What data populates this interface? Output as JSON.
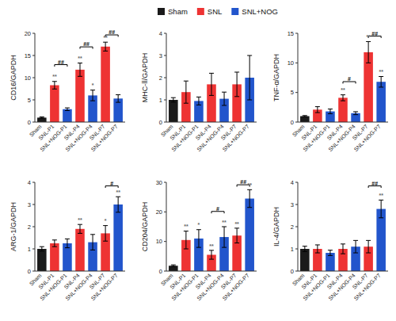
{
  "chart_data": [
    {
      "type": "bar",
      "ylabel": "CD16/GAPDH",
      "categories": [
        "Sham",
        "SNL-P1",
        "SNL+NOG-P1",
        "SNL-P4",
        "SNL+NOG-P4",
        "SNL-P7",
        "SNL+NOG-P7"
      ],
      "values": [
        1.0,
        8.3,
        2.9,
        11.8,
        6.0,
        17.0,
        5.3
      ],
      "errors": [
        0.15,
        0.85,
        0.3,
        1.5,
        1.2,
        1.0,
        0.85
      ],
      "colors": [
        "#1a1a1a",
        "#EE3333",
        "#2255CC",
        "#EE3333",
        "#2255CC",
        "#EE3333",
        "#2255CC"
      ],
      "ylim": [
        0,
        20
      ],
      "yticks": [
        0,
        5,
        10,
        15,
        20
      ],
      "grid": false,
      "annotations": [
        {
          "index": 1,
          "label": "**",
          "color": "dimgray"
        },
        {
          "index": 3,
          "label": "**",
          "color": "dimgray"
        },
        {
          "index": 4,
          "label": "*",
          "color": "dimgray"
        },
        {
          "index": 5,
          "label": "**",
          "color": "dimgray"
        }
      ],
      "brackets": [
        {
          "from": 1,
          "to": 2,
          "y": 12.5,
          "label": "##"
        },
        {
          "from": 3,
          "to": 4,
          "y": 16.5,
          "label": "##"
        },
        {
          "from": 5,
          "to": 6,
          "y": 19.2,
          "label": "##"
        }
      ],
      "legend": "top",
      "legend_entries": [
        {
          "name": "Sham",
          "color": "#1a1a1a"
        },
        {
          "name": "SNL",
          "color": "#EE3333"
        },
        {
          "name": "SNL+NOG",
          "color": "#2255CC"
        }
      ]
    },
    {
      "type": "bar",
      "ylabel": "MHC-Ⅱ/GAPDH",
      "categories": [
        "Sham",
        "SNL-P1",
        "SNL+NOG-P1",
        "SNL-P4",
        "SNL+NOG-P4",
        "SNL-P7",
        "SNL+NOG-P7"
      ],
      "values": [
        1.0,
        1.35,
        0.95,
        1.7,
        1.05,
        1.7,
        2.0
      ],
      "errors": [
        0.1,
        0.5,
        0.18,
        0.5,
        0.3,
        0.55,
        1.0
      ],
      "colors": [
        "#1a1a1a",
        "#EE3333",
        "#2255CC",
        "#EE3333",
        "#2255CC",
        "#EE3333",
        "#2255CC"
      ],
      "ylim": [
        0,
        4
      ],
      "yticks": [
        0,
        1,
        2,
        3,
        4
      ],
      "grid": false,
      "annotations": [],
      "brackets": []
    },
    {
      "type": "bar",
      "ylabel": "TNF-α/GAPDH",
      "categories": [
        "Sham",
        "SNL-P1",
        "SNL+NOG-P1",
        "SNL-P4",
        "SNL+NOG-P4",
        "SNL-P7",
        "SNL+NOG-P7"
      ],
      "values": [
        1.0,
        2.1,
        1.8,
        4.1,
        1.5,
        11.8,
        6.8
      ],
      "errors": [
        0.1,
        0.5,
        0.4,
        0.5,
        0.25,
        1.8,
        0.9
      ],
      "colors": [
        "#1a1a1a",
        "#EE3333",
        "#2255CC",
        "#EE3333",
        "#2255CC",
        "#EE3333",
        "#2255CC"
      ],
      "ylim": [
        0,
        15
      ],
      "yticks": [
        0,
        5,
        10,
        15
      ],
      "grid": false,
      "annotations": [
        {
          "index": 3,
          "label": "**",
          "color": "dimgray"
        },
        {
          "index": 5,
          "label": "**",
          "color": "dimgray"
        },
        {
          "index": 6,
          "label": "**",
          "color": "dimgray"
        }
      ],
      "brackets": [
        {
          "from": 3,
          "to": 4,
          "y": 6.5,
          "label": "#"
        },
        {
          "from": 5,
          "to": 6,
          "y": 14.2,
          "label": "##"
        }
      ]
    },
    {
      "type": "bar",
      "ylabel": "ARG-1/GAPDH",
      "categories": [
        "Sham",
        "SNL-P1",
        "SNL+NOG-P1",
        "SNL-P4",
        "SNL+NOG-P4",
        "SNL-P7",
        "SNL+NOG-P7"
      ],
      "values": [
        1.0,
        1.25,
        1.25,
        1.9,
        1.3,
        1.7,
        3.0
      ],
      "errors": [
        0.1,
        0.15,
        0.2,
        0.2,
        0.35,
        0.35,
        0.35
      ],
      "colors": [
        "#1a1a1a",
        "#EE3333",
        "#2255CC",
        "#EE3333",
        "#2255CC",
        "#EE3333",
        "#2255CC"
      ],
      "ylim": [
        0,
        4
      ],
      "yticks": [
        0,
        1,
        2,
        3,
        4
      ],
      "grid": false,
      "annotations": [
        {
          "index": 3,
          "label": "**",
          "color": "dimgray"
        },
        {
          "index": 5,
          "label": "*",
          "color": "dimgray"
        },
        {
          "index": 6,
          "label": "**",
          "color": "dimgray"
        }
      ],
      "brackets": [
        {
          "from": 5,
          "to": 6,
          "y": 3.75,
          "label": "#"
        }
      ]
    },
    {
      "type": "bar",
      "ylabel": "CD204/GAPDH",
      "categories": [
        "Sham",
        "SNL-P1",
        "SNL+NOG-P1",
        "SNL-P4",
        "SNL+NOG-P4",
        "SNL-P7",
        "SNL+NOG-P7"
      ],
      "values": [
        1.8,
        10.5,
        11.0,
        5.5,
        11.5,
        12.0,
        24.5
      ],
      "errors": [
        0.3,
        3.0,
        3.0,
        1.5,
        3.5,
        2.5,
        3.0
      ],
      "colors": [
        "#1a1a1a",
        "#EE3333",
        "#2255CC",
        "#EE3333",
        "#2255CC",
        "#EE3333",
        "#2255CC"
      ],
      "ylim": [
        0,
        30
      ],
      "yticks": [
        0,
        10,
        20,
        30
      ],
      "grid": false,
      "annotations": [
        {
          "index": 1,
          "label": "**",
          "color": "dimgray"
        },
        {
          "index": 2,
          "label": "*",
          "color": "dimgray"
        },
        {
          "index": 3,
          "label": "**",
          "color": "dimgray"
        },
        {
          "index": 4,
          "label": "**",
          "color": "dimgray"
        },
        {
          "index": 5,
          "label": "**",
          "color": "dimgray"
        },
        {
          "index": 6,
          "label": "**",
          "color": "dimgray"
        }
      ],
      "brackets": [
        {
          "from": 3,
          "to": 4,
          "y": 19.5,
          "label": "#"
        },
        {
          "from": 5,
          "to": 6,
          "y": 28.5,
          "label": "##"
        }
      ]
    },
    {
      "type": "bar",
      "ylabel": "IL-4/GAPDH",
      "categories": [
        "Sham",
        "SNL-P1",
        "SNL+NOG-P1",
        "SNL-P4",
        "SNL+NOG-P4",
        "SNL-P7",
        "SNL+NOG-P7"
      ],
      "values": [
        1.0,
        1.0,
        0.82,
        1.0,
        1.1,
        1.1,
        2.8
      ],
      "errors": [
        0.12,
        0.18,
        0.12,
        0.22,
        0.28,
        0.28,
        0.4
      ],
      "colors": [
        "#1a1a1a",
        "#EE3333",
        "#2255CC",
        "#EE3333",
        "#2255CC",
        "#EE3333",
        "#2255CC"
      ],
      "ylim": [
        0,
        4
      ],
      "yticks": [
        0,
        1,
        2,
        3,
        4
      ],
      "grid": false,
      "annotations": [
        {
          "index": 6,
          "label": "**",
          "color": "dimgray"
        }
      ],
      "brackets": [
        {
          "from": 5,
          "to": 6,
          "y": 3.75,
          "label": "##"
        }
      ]
    }
  ]
}
